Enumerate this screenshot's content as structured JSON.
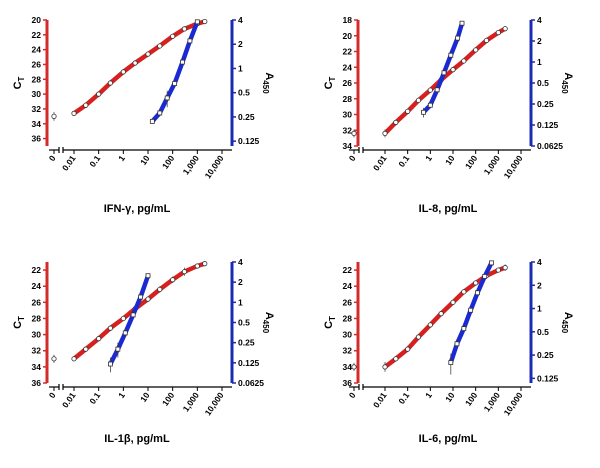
{
  "colors": {
    "left_axis": "#d42a2a",
    "right_axis": "#1c2bb3",
    "pcr_curve": "#d62020",
    "elisa_curve": "#1a2ad0",
    "points_fill": "#ffffff",
    "points_stroke": "#333333"
  },
  "chart_data": [
    {
      "type": "line",
      "title": "IFN-γ, pg/mL",
      "xlabel": "IFN-γ, pg/mL",
      "xticks": [
        "0",
        "0.01",
        "0.1",
        "1",
        "10",
        "100",
        "1,000",
        "10,000"
      ],
      "xlim_log10": [
        -2.4,
        4.0
      ],
      "ylabel_left": "CT",
      "ylabel_left_main": "C",
      "ylabel_left_sub": "T",
      "yticks_left": [
        "20",
        "22",
        "24",
        "26",
        "28",
        "30",
        "32",
        "34",
        "36"
      ],
      "ylim_left": [
        20,
        37
      ],
      "ylabel_right": "A450",
      "ylabel_right_main": "A",
      "ylabel_right_sub": "450",
      "yticks_right": [
        "4",
        "2",
        "1",
        "0.5",
        "0.25",
        "0.125"
      ],
      "ylim_right_log2": [
        -3.2,
        2.0
      ],
      "series": [
        {
          "name": "CT",
          "axis": "left",
          "zero_point": {
            "y": 33.0,
            "err": 0.6
          },
          "x": [
            0.01,
            0.03,
            0.1,
            0.3,
            1,
            3,
            10,
            30,
            100,
            300,
            1000,
            2000
          ],
          "y": [
            32.6,
            31.5,
            30.0,
            28.5,
            27.0,
            25.8,
            24.6,
            23.5,
            22.2,
            21.2,
            20.5,
            20.2
          ],
          "err": [
            0.3,
            0.2,
            0.2,
            0.2,
            0.2,
            0.2,
            0.2,
            0.2,
            0.2,
            0.2,
            0.2,
            0.2
          ]
        },
        {
          "name": "A450",
          "axis": "right",
          "x": [
            15,
            30,
            60,
            120,
            250,
            500,
            1000
          ],
          "y": [
            0.22,
            0.28,
            0.43,
            0.65,
            1.2,
            2.2,
            3.8
          ],
          "err": [
            0.01,
            0.02,
            0.1,
            0.04,
            0.05,
            0.1,
            0.1
          ]
        }
      ]
    },
    {
      "type": "line",
      "title": "IL-8, pg/mL",
      "xlabel": "IL-8, pg/mL",
      "xticks": [
        "0",
        "0.01",
        "0.1",
        "1",
        "10",
        "100",
        "1,000",
        "10,000"
      ],
      "xlim_log10": [
        -2.4,
        4.0
      ],
      "ylabel_left": "CT",
      "ylabel_left_main": "C",
      "ylabel_left_sub": "T",
      "yticks_left": [
        "18",
        "20",
        "22",
        "24",
        "26",
        "28",
        "30",
        "32",
        "34"
      ],
      "ylim_left": [
        18,
        34
      ],
      "ylabel_right": "A450",
      "ylabel_right_main": "A",
      "ylabel_right_sub": "450",
      "yticks_right": [
        "4",
        "2",
        "1",
        "0.5",
        "0.25",
        "0.125",
        "0.0625"
      ],
      "ylim_right_log2": [
        -4.0,
        2.0
      ],
      "series": [
        {
          "name": "CT",
          "axis": "left",
          "zero_point": {
            "y": 32.4,
            "err": 0.5
          },
          "x": [
            0.01,
            0.03,
            0.1,
            0.3,
            1,
            3,
            10,
            30,
            100,
            300,
            1000,
            2000
          ],
          "y": [
            32.4,
            31.0,
            29.6,
            28.2,
            26.9,
            25.6,
            24.3,
            23.2,
            21.8,
            20.6,
            19.6,
            19.1
          ],
          "err": [
            0.5,
            0.2,
            0.2,
            0.2,
            0.2,
            0.2,
            0.2,
            0.2,
            0.2,
            0.2,
            0.2,
            0.3
          ]
        },
        {
          "name": "A450",
          "axis": "right",
          "x": [
            0.5,
            1,
            2,
            4,
            8,
            16,
            25
          ],
          "y": [
            0.19,
            0.24,
            0.4,
            0.7,
            1.25,
            2.2,
            3.6
          ],
          "err": [
            0.03,
            0.02,
            0.03,
            0.03,
            0.05,
            0.08,
            0.2
          ]
        }
      ]
    },
    {
      "type": "line",
      "title": "IL-1β, pg/mL",
      "xlabel": "IL-1β, pg/mL",
      "xticks": [
        "0",
        "0.01",
        "0.1",
        "1",
        "10",
        "100",
        "1,000",
        "10,000"
      ],
      "xlim_log10": [
        -2.4,
        4.0
      ],
      "ylabel_left": "CT",
      "ylabel_left_main": "C",
      "ylabel_left_sub": "T",
      "yticks_left": [
        "22",
        "24",
        "26",
        "28",
        "30",
        "32",
        "34",
        "36"
      ],
      "ylim_left": [
        21,
        36
      ],
      "ylabel_right": "A450",
      "ylabel_right_main": "A",
      "ylabel_right_sub": "450",
      "yticks_right": [
        "4",
        "2",
        "1",
        "0.5",
        "0.25",
        "0.125",
        "0.0625"
      ],
      "ylim_right_log2": [
        -4.0,
        2.0
      ],
      "series": [
        {
          "name": "CT",
          "axis": "left",
          "zero_point": {
            "y": 33.0,
            "err": 0.5
          },
          "x": [
            0.01,
            0.03,
            0.1,
            0.3,
            1,
            3,
            10,
            30,
            100,
            300,
            1000,
            2000
          ],
          "y": [
            33.0,
            31.8,
            30.5,
            29.2,
            28.0,
            26.8,
            25.6,
            24.4,
            23.2,
            22.2,
            21.5,
            21.2
          ],
          "err": [
            0.2,
            0.3,
            0.3,
            0.3,
            0.3,
            0.3,
            0.3,
            0.4,
            0.4,
            0.5,
            0.3,
            0.3
          ]
        },
        {
          "name": "A450",
          "axis": "right",
          "x": [
            0.3,
            0.6,
            1.2,
            2.5,
            5,
            10
          ],
          "y": [
            0.12,
            0.2,
            0.35,
            0.65,
            1.2,
            2.5
          ],
          "err": [
            0.03,
            0.05,
            0.05,
            0.05,
            0.1,
            0.1
          ]
        }
      ]
    },
    {
      "type": "line",
      "title": "IL-6, pg/mL",
      "xlabel": "IL-6, pg/mL",
      "xticks": [
        "0",
        "0.01",
        "0.1",
        "1",
        "10",
        "100",
        "1,000",
        "10,000"
      ],
      "xlim_log10": [
        -2.4,
        4.0
      ],
      "ylabel_left": "CT",
      "ylabel_left_main": "C",
      "ylabel_left_sub": "T",
      "yticks_left": [
        "22",
        "24",
        "26",
        "28",
        "30",
        "32",
        "34",
        "36"
      ],
      "ylim_left": [
        21,
        36
      ],
      "ylabel_right": "A450",
      "ylabel_right_main": "A",
      "ylabel_right_sub": "450",
      "yticks_right": [
        "4",
        "2",
        "1",
        "0.5",
        "0.25",
        "0.125"
      ],
      "ylim_right_log2": [
        -3.2,
        2.0
      ],
      "series": [
        {
          "name": "CT",
          "axis": "left",
          "zero_point": {
            "y": 34.0,
            "err": 0.5
          },
          "x": [
            0.01,
            0.03,
            0.1,
            0.3,
            1,
            3,
            10,
            30,
            100,
            300,
            1000,
            2000
          ],
          "y": [
            34.0,
            33.0,
            31.8,
            30.3,
            28.8,
            27.4,
            26.0,
            24.7,
            23.6,
            22.7,
            22.0,
            21.7
          ],
          "err": [
            0.6,
            0.2,
            0.2,
            0.2,
            0.2,
            0.2,
            0.2,
            0.2,
            0.2,
            0.2,
            0.2,
            0.4
          ]
        },
        {
          "name": "A450",
          "axis": "right",
          "x": [
            8,
            15,
            30,
            60,
            120,
            250,
            500
          ],
          "y": [
            0.2,
            0.35,
            0.55,
            0.95,
            1.6,
            2.6,
            3.9
          ],
          "err": [
            0.06,
            0.03,
            0.04,
            0.05,
            0.05,
            0.08,
            0.1
          ]
        }
      ]
    }
  ]
}
